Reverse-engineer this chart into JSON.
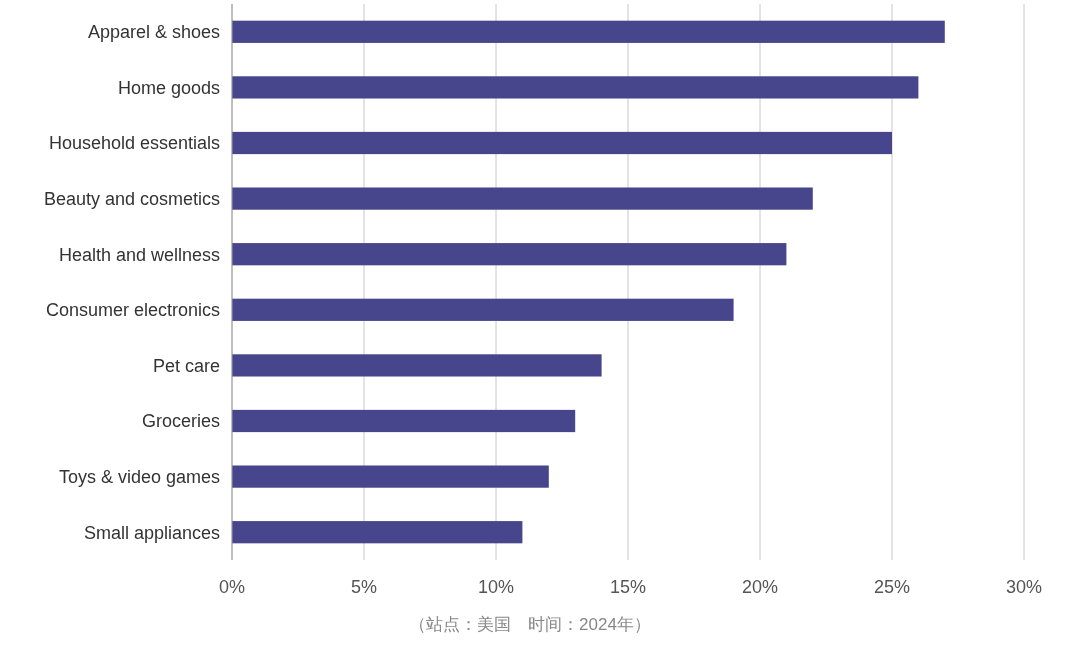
{
  "chart_data": {
    "type": "bar",
    "orientation": "horizontal",
    "categories": [
      "Apparel & shoes",
      "Home goods",
      "Household essentials",
      "Beauty and cosmetics",
      "Health and wellness",
      "Consumer electronics",
      "Pet care",
      "Groceries",
      "Toys & video games",
      "Small appliances"
    ],
    "values": [
      27,
      26,
      25,
      22,
      21,
      19,
      14,
      13,
      12,
      11
    ],
    "color": "#47468c",
    "xlim": [
      0,
      30
    ],
    "xticks": [
      {
        "value": 0,
        "label": "0%"
      },
      {
        "value": 5,
        "label": "5%"
      },
      {
        "value": 10,
        "label": "10%"
      },
      {
        "value": 15,
        "label": "15%"
      },
      {
        "value": 20,
        "label": "20%"
      },
      {
        "value": 25,
        "label": "25%"
      },
      {
        "value": 30,
        "label": "30%"
      }
    ],
    "grid": "x",
    "annotations": [
      "（站点：美国　时间：2024年）"
    ]
  }
}
